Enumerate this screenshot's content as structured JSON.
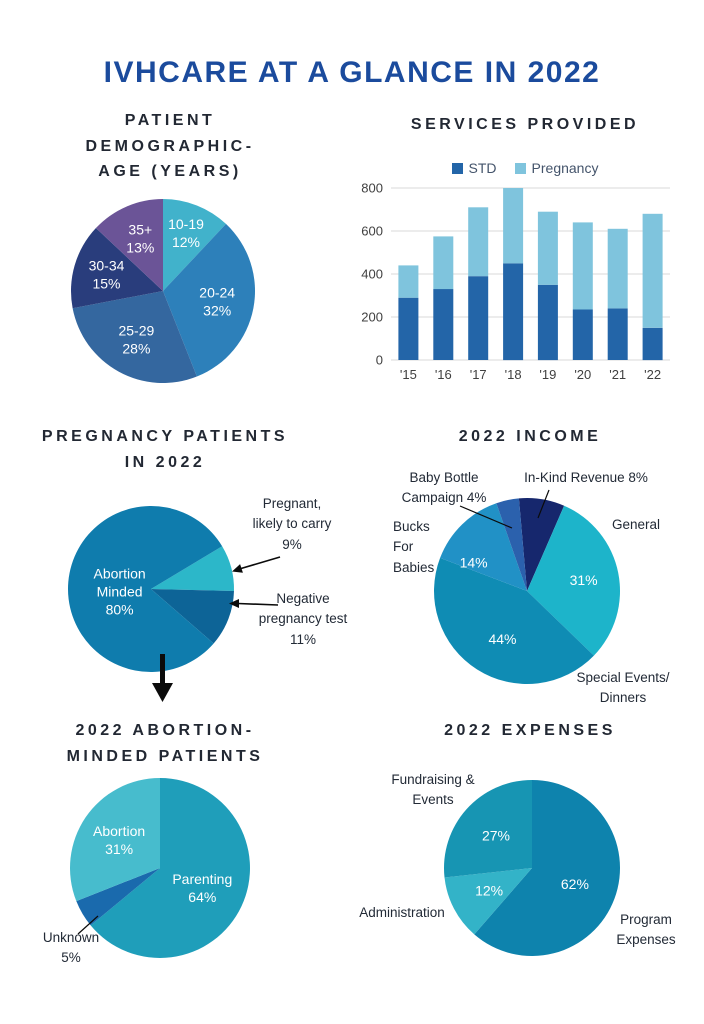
{
  "page": {
    "title": "IVHCARE AT A GLANCE IN 2022"
  },
  "sections": {
    "age": {
      "heading": "PATIENT\nDEMOGRAPHIC-\nAGE (YEARS)"
    },
    "services": {
      "heading": "SERVICES PROVIDED"
    },
    "pregnancy": {
      "heading": "PREGNANCY PATIENTS\nIN 2022",
      "callout_likely": "Pregnant,\nlikely to carry\n9%",
      "callout_negative": "Negative\npregnancy test\n11%"
    },
    "income": {
      "heading": "2022 INCOME",
      "label_baby_bottle": "Baby Bottle\nCampaign 4%",
      "label_inkind": "In-Kind Revenue 8%",
      "label_bucks": "Bucks\nFor\nBabies",
      "label_general": "General",
      "label_special": "Special Events/\nDinners"
    },
    "abortion_minded": {
      "heading": "2022 ABORTION-\nMINDED PATIENTS",
      "label_unknown": "Unknown\n5%"
    },
    "expenses": {
      "heading": "2022 EXPENSES",
      "label_fundraising": "Fundraising &\nEvents",
      "label_admin": "Administration",
      "label_program": "Program\nExpenses"
    }
  },
  "colors": {
    "title_blue": "#1b4b9d",
    "heading_dark": "#222833",
    "grid_gray": "#d9d9d9",
    "arrow_black": "#0b0b0b"
  },
  "chart_data": [
    {
      "id": "age_pie",
      "type": "pie",
      "title": "Patient Demographic - Age (Years)",
      "start_angle": 0,
      "slices": [
        {
          "label": "10-19",
          "value": 12,
          "color": "#41b2cb",
          "label_lines": [
            "10-19",
            "12%"
          ],
          "label_r": 0.68
        },
        {
          "label": "20-24",
          "value": 32,
          "color": "#2d80ba",
          "label_lines": [
            "20-24",
            "32%"
          ],
          "label_r": 0.6
        },
        {
          "label": "25-29",
          "value": 28,
          "color": "#34679f",
          "label_lines": [
            "25-29",
            "28%"
          ],
          "label_r": 0.6
        },
        {
          "label": "30-34",
          "value": 15,
          "color": "#293d7c",
          "label_lines": [
            "30-34",
            "15%"
          ],
          "label_r": 0.64
        },
        {
          "label": "35+",
          "value": 13,
          "color": "#6b5497",
          "label_lines": [
            "35+",
            "13%"
          ],
          "label_r": 0.62
        }
      ]
    },
    {
      "id": "services_bar",
      "type": "stacked_bar",
      "title": "Services Provided",
      "categories": [
        "'15",
        "'16",
        "'17",
        "'18",
        "'19",
        "'20",
        "'21",
        "'22"
      ],
      "series": [
        {
          "name": "STD",
          "color": "#2365a8",
          "values": [
            290,
            330,
            390,
            450,
            350,
            235,
            240,
            150
          ]
        },
        {
          "name": "Pregnancy",
          "color": "#7fc4dd",
          "values": [
            150,
            245,
            320,
            350,
            340,
            405,
            370,
            530
          ]
        }
      ],
      "ylim": [
        0,
        800
      ],
      "yticks": [
        0,
        200,
        400,
        600,
        800
      ],
      "grid": true,
      "legend_position": "top"
    },
    {
      "id": "pregnancy_pie",
      "type": "pie",
      "title": "Pregnancy Patients in 2022",
      "start_angle": 59,
      "slices": [
        {
          "label": "Pregnant, likely to carry",
          "value": 9,
          "color": "#2cb7c9",
          "label_lines": null
        },
        {
          "label": "Negative pregnancy test",
          "value": 11,
          "color": "#0d6497",
          "label_lines": null
        },
        {
          "label": "Abortion Minded",
          "value": 80,
          "color": "#0f7cad",
          "label_lines": [
            "Abortion",
            "Minded",
            "80%"
          ],
          "label_r": 0.38,
          "label_angle": 265
        }
      ]
    },
    {
      "id": "income_pie",
      "type": "pie",
      "title": "2022 Income",
      "start_angle": -5,
      "slices": [
        {
          "label": "In-Kind Revenue",
          "value": 8,
          "color": "#16276d",
          "label_lines": null
        },
        {
          "label": "General",
          "value": 31,
          "color": "#1db4ca",
          "label_lines": [
            "31%"
          ],
          "label_r": 0.62
        },
        {
          "label": "Special Events/Dinners",
          "value": 44,
          "color": "#0f8cb4",
          "label_lines": [
            "44%"
          ],
          "label_r": 0.58,
          "label_angle": 207
        },
        {
          "label": "Bucks For Babies",
          "value": 14,
          "color": "#2191c6",
          "label_lines": [
            "14%"
          ],
          "label_r": 0.65,
          "label_angle": 298
        },
        {
          "label": "Baby Bottle Campaign",
          "value": 4,
          "color": "#2b61ad",
          "label_lines": null
        }
      ]
    },
    {
      "id": "abortion_minded_pie",
      "type": "pie",
      "title": "2022 Abortion-Minded Patients",
      "start_angle": 0,
      "slices": [
        {
          "label": "Parenting",
          "value": 64,
          "color": "#1f9eba",
          "label_lines": [
            "Parenting",
            "64%"
          ],
          "label_r": 0.52
        },
        {
          "label": "Unknown",
          "value": 5,
          "color": "#1a6aad",
          "label_lines": null
        },
        {
          "label": "Abortion",
          "value": 31,
          "color": "#47bccd",
          "label_lines": [
            "Abortion",
            "31%"
          ],
          "label_r": 0.55
        }
      ]
    },
    {
      "id": "expenses_pie",
      "type": "pie",
      "title": "2022 Expenses",
      "start_angle": 0,
      "slices": [
        {
          "label": "Program Expenses",
          "value": 62,
          "color": "#0e83ad",
          "label_lines": [
            "62%"
          ],
          "label_r": 0.52
        },
        {
          "label": "Administration",
          "value": 12,
          "color": "#33b3c8",
          "label_lines": [
            "12%"
          ],
          "label_r": 0.55
        },
        {
          "label": "Fundraising & Events",
          "value": 27,
          "color": "#1795b3",
          "label_lines": [
            "27%"
          ],
          "label_r": 0.55
        }
      ]
    }
  ]
}
